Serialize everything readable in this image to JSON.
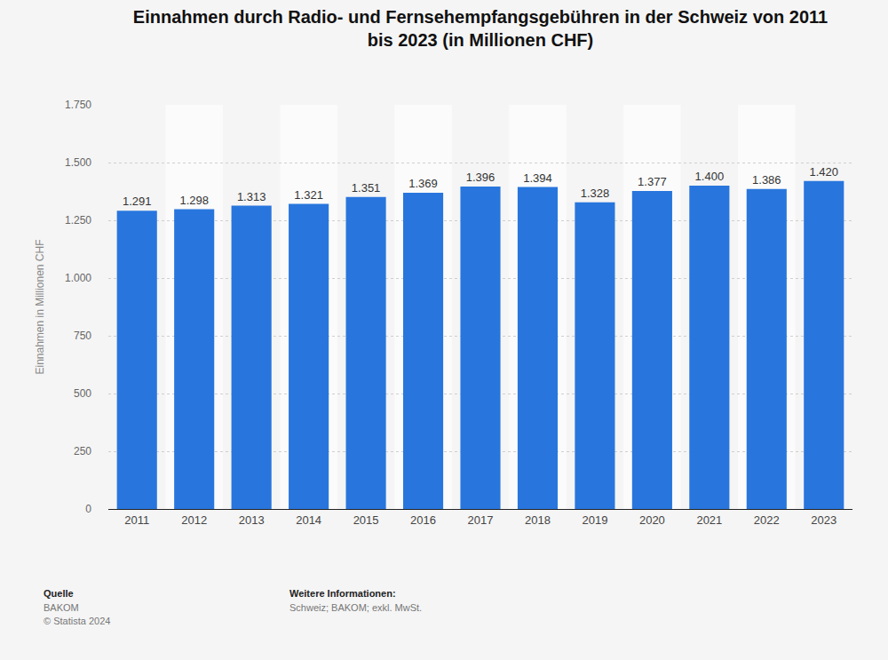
{
  "chart_data": {
    "type": "bar",
    "title": "Einnahmen durch Radio- und Fernsehempfangsgebühren in der Schweiz von 2011\nbis 2023 (in Millionen CHF)",
    "y_label": "Einnahmen in Millionen CHF",
    "categories": [
      "2011",
      "2012",
      "2013",
      "2014",
      "2015",
      "2016",
      "2017",
      "2018",
      "2019",
      "2020",
      "2021",
      "2022",
      "2023"
    ],
    "values": [
      1291,
      1298,
      1313,
      1321,
      1351,
      1369,
      1396,
      1394,
      1328,
      1377,
      1400,
      1386,
      1420
    ],
    "value_labels": [
      "1.291",
      "1.298",
      "1.313",
      "1.321",
      "1.351",
      "1.369",
      "1.396",
      "1.394",
      "1.328",
      "1.377",
      "1.400",
      "1.386",
      "1.420"
    ],
    "color": "#2876dd",
    "ylim": [
      0,
      1750
    ],
    "yticks": [
      0,
      250,
      500,
      750,
      {
        "value": 1000,
        "label": "1.000"
      },
      {
        "value": 1250,
        "label": "1.250"
      },
      {
        "value": 1500,
        "label": "1.500"
      },
      {
        "value": 1750,
        "label": "1.750"
      }
    ],
    "grid": true,
    "data_labels": true,
    "footer": {
      "source_title": "Quelle",
      "source": "BAKOM",
      "copyright": "© Statista 2024",
      "info_title": "Weitere Informationen:",
      "info": "Schweiz; BAKOM; exkl. MwSt."
    }
  }
}
